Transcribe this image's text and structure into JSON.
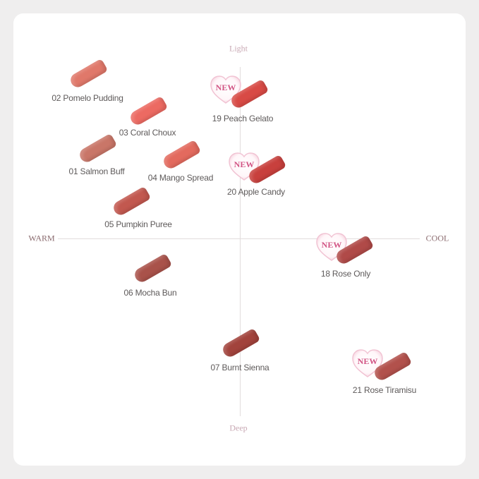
{
  "axes": {
    "top": "Light",
    "bottom": "Deep",
    "left": "WARM",
    "right": "COOL"
  },
  "badge_text": "NEW",
  "shades": [
    {
      "label": "02 Pomelo Pudding",
      "color": "#e0786a",
      "new": false
    },
    {
      "label": "03 Coral Choux",
      "color": "#ec6a62",
      "new": false
    },
    {
      "label": "01 Salmon Buff",
      "color": "#c97668",
      "new": false
    },
    {
      "label": "04 Mango Spread",
      "color": "#e36a5e",
      "new": false
    },
    {
      "label": "05 Pumpkin Puree",
      "color": "#c2584f",
      "new": false
    },
    {
      "label": "06 Mocha Bun",
      "color": "#a9524a",
      "new": false
    },
    {
      "label": "19 Peach Gelato",
      "color": "#d84a45",
      "new": true
    },
    {
      "label": "20 Apple Candy",
      "color": "#c8403d",
      "new": true
    },
    {
      "label": "18 Rose Only",
      "color": "#b04a48",
      "new": true
    },
    {
      "label": "07 Burnt Sienna",
      "color": "#a2433c",
      "new": false
    },
    {
      "label": "21 Rose Tiramisu",
      "color": "#b2514c",
      "new": true
    }
  ]
}
